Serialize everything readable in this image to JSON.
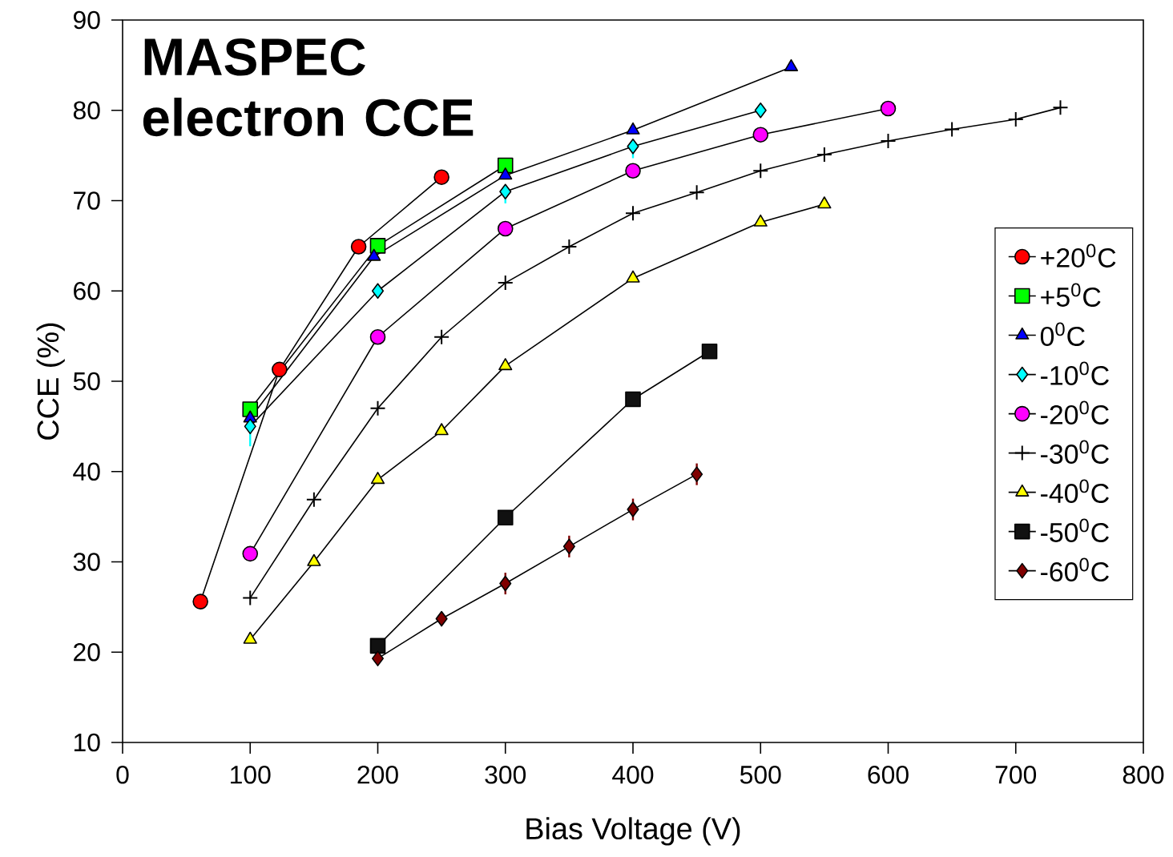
{
  "chart_data": {
    "type": "line",
    "title": "MASPEC electron CCE",
    "xlabel": "Bias Voltage (V)",
    "ylabel": "CCE (%)",
    "xlim": [
      0,
      800
    ],
    "ylim": [
      10,
      90
    ],
    "xticks": [
      0,
      100,
      200,
      300,
      400,
      500,
      600,
      700,
      800
    ],
    "yticks": [
      10,
      20,
      30,
      40,
      50,
      60,
      70,
      80,
      90
    ],
    "legend": "right",
    "series": [
      {
        "name": "+20$^{0}$C",
        "color": "#ff0000",
        "marker": "circle",
        "x": [
          61,
          123,
          185,
          250
        ],
        "values": [
          25.6,
          51.3,
          64.9,
          72.6
        ]
      },
      {
        "name": "+5$^{0}$C",
        "color": "#00ff00",
        "marker": "square",
        "x": [
          100,
          200,
          300
        ],
        "values": [
          46.9,
          65,
          73.9
        ]
      },
      {
        "name": "0$^{0}$C",
        "color": "#0000ff",
        "marker": "triangle-down",
        "x": [
          100,
          197,
          300,
          400,
          524
        ],
        "values": [
          45.9,
          63.8,
          72.8,
          77.8,
          84.8
        ]
      },
      {
        "name": "-10$^{0}$C",
        "color": "#00ffff",
        "marker": "diamond",
        "x": [
          100,
          200,
          300,
          400,
          500
        ],
        "values": [
          45,
          60,
          71,
          76,
          80
        ],
        "errors": [
          [
            42.8,
            45
          ],
          null,
          [
            69.7,
            71
          ],
          [
            74.7,
            76
          ],
          null
        ]
      },
      {
        "name": "-20$^{0}$C",
        "color": "#ff00ff",
        "marker": "circle",
        "x": [
          100,
          200,
          300,
          400,
          500,
          600
        ],
        "values": [
          30.9,
          54.9,
          66.9,
          73.3,
          77.3,
          80.2
        ]
      },
      {
        "name": "-30$^{0}$C",
        "color": "#000000",
        "marker": "cross",
        "x": [
          100,
          150,
          200,
          250,
          300,
          350,
          400,
          450,
          500,
          550,
          600,
          650,
          700,
          735
        ],
        "values": [
          26.0,
          36.9,
          47.0,
          54.9,
          60.9,
          64.9,
          68.6,
          70.9,
          73.3,
          75.1,
          76.6,
          77.9,
          79.0,
          80.3
        ]
      },
      {
        "name": "-40$^{0}$C",
        "color": "#ffff00",
        "marker": "triangle",
        "x": [
          100,
          150,
          200,
          250,
          300,
          400,
          500,
          550
        ],
        "values": [
          21.4,
          30.0,
          39.1,
          44.5,
          51.7,
          61.4,
          67.6,
          69.6
        ]
      },
      {
        "name": "-50$^{0}$C",
        "color": "#111111",
        "marker": "square",
        "x": [
          200,
          300,
          400,
          460
        ],
        "values": [
          20.7,
          34.9,
          48.0,
          53.3
        ]
      },
      {
        "name": "-60$^{0}$C",
        "color": "#800000",
        "marker": "diamond",
        "x": [
          200,
          250,
          300,
          350,
          400,
          450
        ],
        "values": [
          19.3,
          23.7,
          27.6,
          31.7,
          35.8,
          39.7
        ],
        "errors": [
          null,
          null,
          1.2,
          1.2,
          1.2,
          1.2
        ]
      }
    ]
  }
}
